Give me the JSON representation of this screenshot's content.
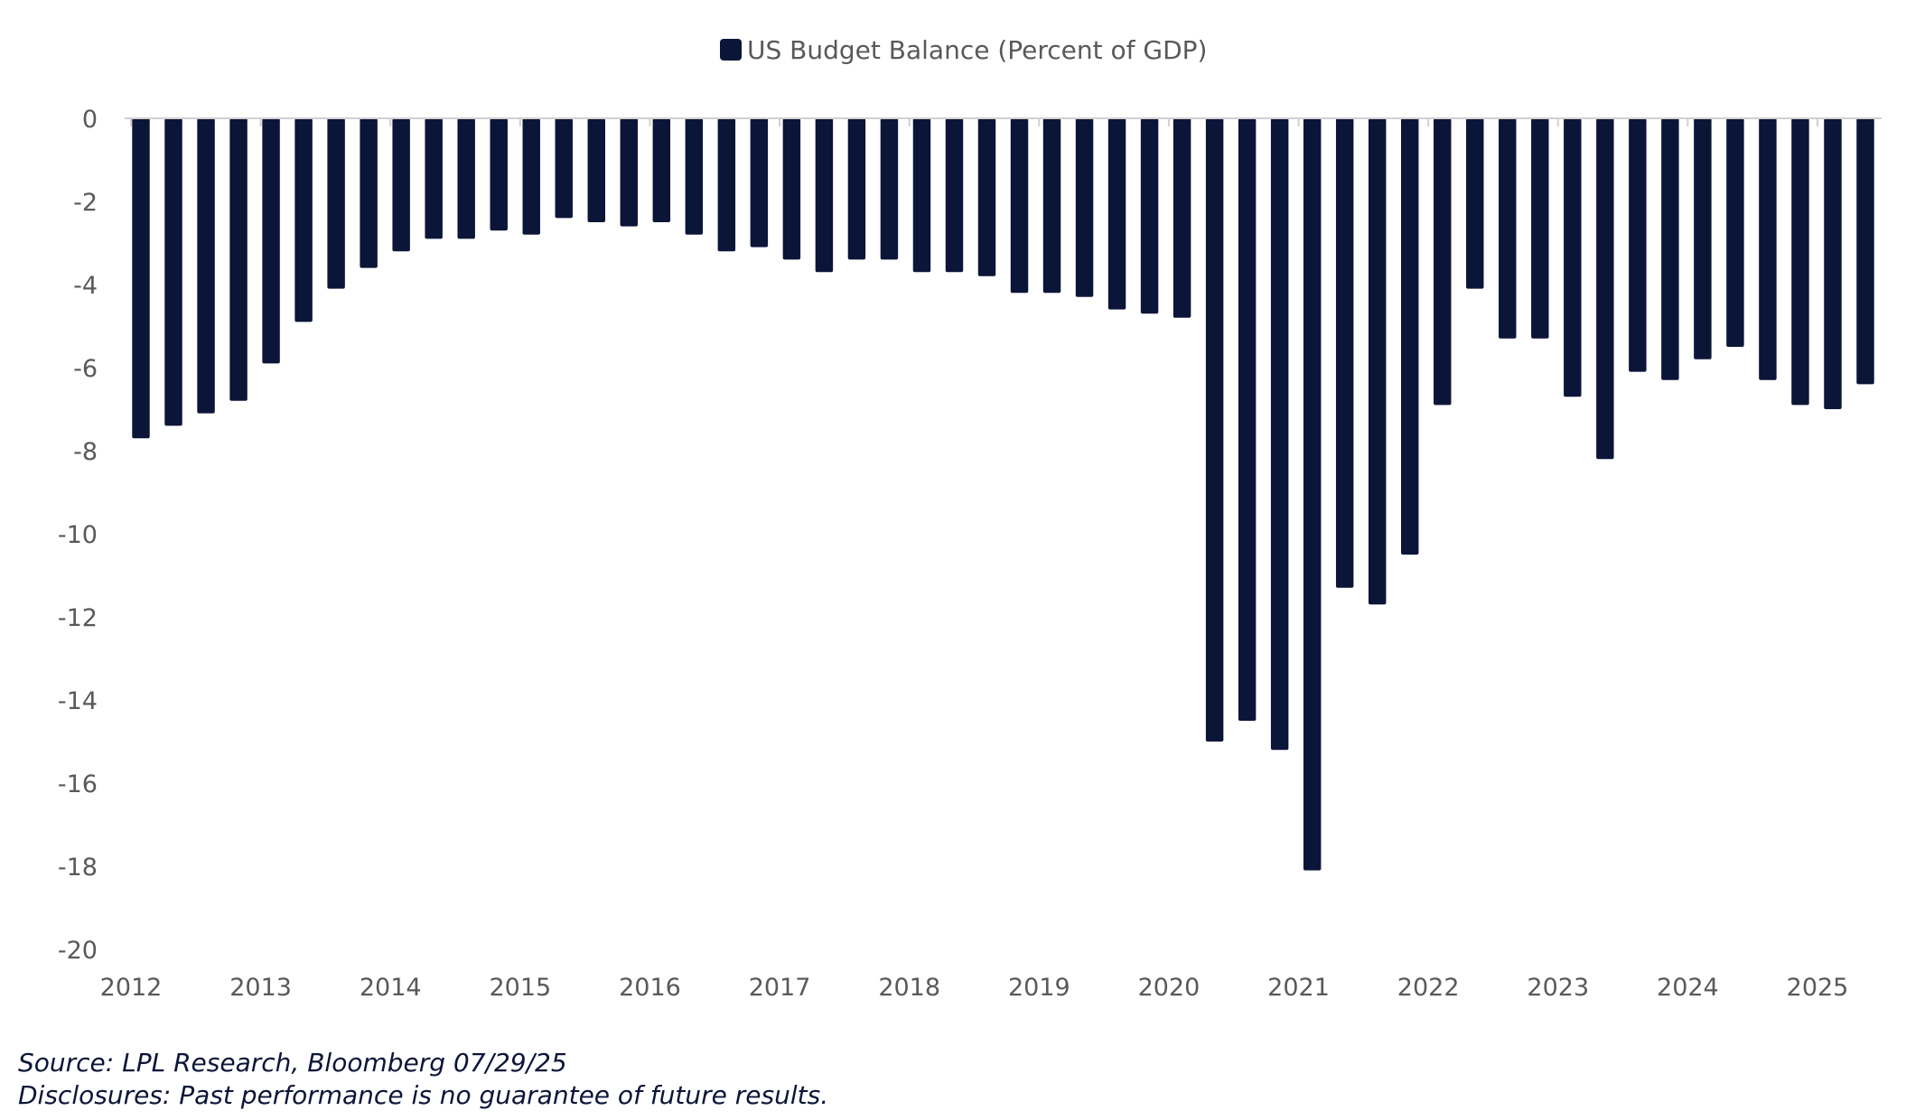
{
  "chart_data": {
    "type": "bar",
    "legend": [
      "US Budget Balance (Percent of GDP)"
    ],
    "legend_position": "top-center",
    "series": [
      {
        "name": "US Budget Balance (Percent of GDP)",
        "color": "#0b1538",
        "values": [
          -7.7,
          -7.4,
          -7.1,
          -6.8,
          -5.9,
          -4.9,
          -4.1,
          -3.6,
          -3.2,
          -2.9,
          -2.9,
          -2.7,
          -2.8,
          -2.4,
          -2.5,
          -2.6,
          -2.5,
          -2.8,
          -3.2,
          -3.1,
          -3.4,
          -3.7,
          -3.4,
          -3.4,
          -3.7,
          -3.7,
          -3.8,
          -4.2,
          -4.2,
          -4.3,
          -4.6,
          -4.7,
          -4.8,
          -15.0,
          -14.5,
          -15.2,
          -18.1,
          -11.3,
          -11.7,
          -10.5,
          -6.9,
          -4.1,
          -5.3,
          -5.3,
          -6.7,
          -8.2,
          -6.1,
          -6.3,
          -5.8,
          -5.5,
          -6.3,
          -6.9,
          -7.0,
          -6.4
        ]
      }
    ],
    "x_ticks": [
      "2012",
      "2013",
      "2014",
      "2015",
      "2016",
      "2017",
      "2018",
      "2019",
      "2020",
      "2021",
      "2022",
      "2023",
      "2024",
      "2025"
    ],
    "y_ticks": [
      "0",
      "-2",
      "-4",
      "-6",
      "-8",
      "-10",
      "-12",
      "-14",
      "-16",
      "-18",
      "-20"
    ],
    "ylim": [
      -20,
      0
    ],
    "y_tick_step": 2,
    "grid": false,
    "title": "",
    "xlabel": "",
    "ylabel": ""
  },
  "footer": {
    "source": "Source: LPL Research, Bloomberg 07/29/25",
    "disclosure": "Disclosures: Past performance is no guarantee of future results."
  }
}
